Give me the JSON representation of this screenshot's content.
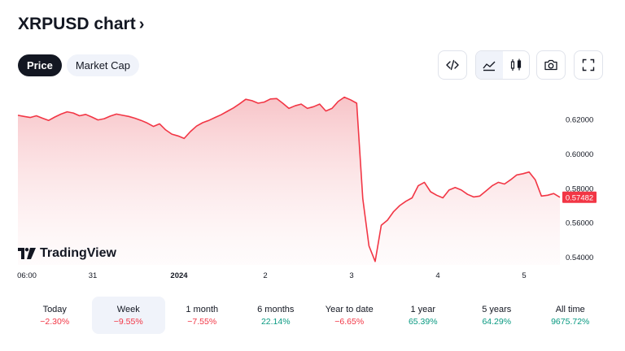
{
  "header": {
    "title": "XRPUSD chart",
    "chevron": "›"
  },
  "tabs": [
    {
      "label": "Price",
      "active": true
    },
    {
      "label": "Market Cap",
      "active": false
    }
  ],
  "toolbar": {
    "embed_icon": "code-icon",
    "area_chart_icon": "area-chart-icon",
    "candles_icon": "candlestick-icon",
    "snapshot_icon": "camera-icon",
    "fullscreen_icon": "fullscreen-icon"
  },
  "branding": {
    "logo_text": "TradingView"
  },
  "colors": {
    "line": "#f23645",
    "fill_top": "#f7c1c5",
    "price_tag": "#f23645",
    "negative": "#f23645",
    "positive": "#089981"
  },
  "chart_data": {
    "type": "area",
    "x_ticks": [
      "06:00",
      "31",
      "2024",
      "2",
      "3",
      "4",
      "5"
    ],
    "y_ticks": [
      "0.62000",
      "0.60000",
      "0.58000",
      "0.56000",
      "0.54000"
    ],
    "ylim": [
      0.5355,
      0.6385
    ],
    "last_price_label": "0.57482",
    "series": [
      {
        "values": [
          0.6225,
          0.6218,
          0.6212,
          0.6222,
          0.6208,
          0.6195,
          0.6215,
          0.6232,
          0.6245,
          0.6238,
          0.6222,
          0.623,
          0.6215,
          0.6198,
          0.6205,
          0.622,
          0.6232,
          0.6225,
          0.6218,
          0.6208,
          0.6195,
          0.618,
          0.616,
          0.6175,
          0.614,
          0.6115,
          0.6105,
          0.609,
          0.613,
          0.6162,
          0.6182,
          0.6195,
          0.6212,
          0.6228,
          0.6248,
          0.6268,
          0.6292,
          0.6318,
          0.631,
          0.6295,
          0.6302,
          0.632,
          0.6322,
          0.6295,
          0.6265,
          0.628,
          0.629,
          0.6265,
          0.6275,
          0.629,
          0.625,
          0.6265,
          0.6305,
          0.633,
          0.6315,
          0.6295,
          0.574,
          0.5465,
          0.5375,
          0.5585,
          0.5615,
          0.5665,
          0.57,
          0.5725,
          0.5745,
          0.5815,
          0.5835,
          0.578,
          0.576,
          0.5745,
          0.579,
          0.5805,
          0.579,
          0.5765,
          0.575,
          0.5755,
          0.5785,
          0.5815,
          0.5835,
          0.5825,
          0.585,
          0.5878,
          0.5885,
          0.5895,
          0.585,
          0.5755,
          0.576,
          0.577,
          0.5748
        ]
      }
    ]
  },
  "periods": [
    {
      "label": "Today",
      "value": "−2.30%",
      "sign": "neg",
      "active": false
    },
    {
      "label": "Week",
      "value": "−9.55%",
      "sign": "neg",
      "active": true
    },
    {
      "label": "1 month",
      "value": "−7.55%",
      "sign": "neg",
      "active": false
    },
    {
      "label": "6 months",
      "value": "22.14%",
      "sign": "pos",
      "active": false
    },
    {
      "label": "Year to date",
      "value": "−6.65%",
      "sign": "neg",
      "active": false
    },
    {
      "label": "1 year",
      "value": "65.39%",
      "sign": "pos",
      "active": false
    },
    {
      "label": "5 years",
      "value": "64.29%",
      "sign": "pos",
      "active": false
    },
    {
      "label": "All time",
      "value": "9675.72%",
      "sign": "pos",
      "active": false
    }
  ]
}
